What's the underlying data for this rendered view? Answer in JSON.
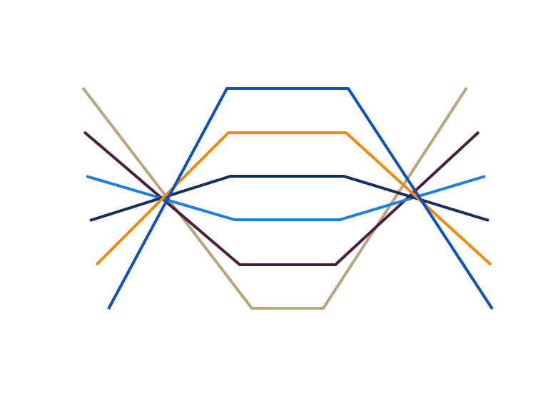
{
  "diagram": {
    "lines": [
      {
        "id": "tan-v-line",
        "color": "#B8A47F"
      },
      {
        "id": "dark-purple-v-line",
        "color": "#4A1F3E"
      },
      {
        "id": "light-blue-v-line",
        "color": "#1E7FE0"
      },
      {
        "id": "navy-trapezoid-line",
        "color": "#14305A"
      },
      {
        "id": "orange-trapezoid-line",
        "color": "#F08A0A"
      },
      {
        "id": "blue-trapezoid-line",
        "color": "#0A4FC4"
      }
    ]
  }
}
